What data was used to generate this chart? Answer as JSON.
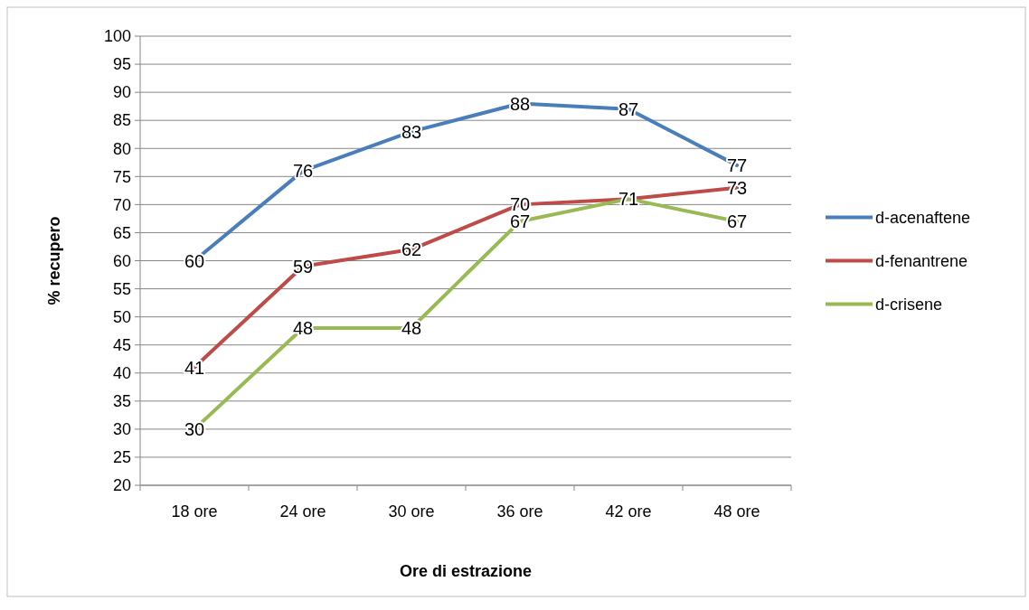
{
  "chart_data": {
    "type": "line",
    "xlabel": "Ore di estrazione",
    "ylabel": "% recupero",
    "categories": [
      "18 ore",
      "24 ore",
      "30 ore",
      "36 ore",
      "42 ore",
      "48 ore"
    ],
    "series": [
      {
        "name": "d-acenaftene",
        "color": "#4a7ebb",
        "values": [
          60,
          76,
          83,
          88,
          87,
          77
        ],
        "value_labels": [
          "60",
          "76",
          "83",
          "88",
          "87",
          "77"
        ]
      },
      {
        "name": "d-fenantrene",
        "color": "#be4b48",
        "values": [
          41,
          59,
          62,
          70,
          71,
          73
        ],
        "value_labels": [
          "41",
          "59",
          "62",
          "70",
          "71",
          "73"
        ]
      },
      {
        "name": "d-crisene",
        "color": "#98b954",
        "values": [
          30,
          48,
          48,
          67,
          71,
          67
        ],
        "value_labels": [
          "30",
          "48",
          "48",
          "67",
          null,
          "67"
        ]
      }
    ],
    "ylim": [
      20,
      100
    ],
    "yticks": [
      20,
      25,
      30,
      35,
      40,
      45,
      50,
      55,
      60,
      65,
      70,
      75,
      80,
      85,
      90,
      95,
      100
    ],
    "grid": "y",
    "legend": "right",
    "marker": "none",
    "line_style": "solid"
  }
}
